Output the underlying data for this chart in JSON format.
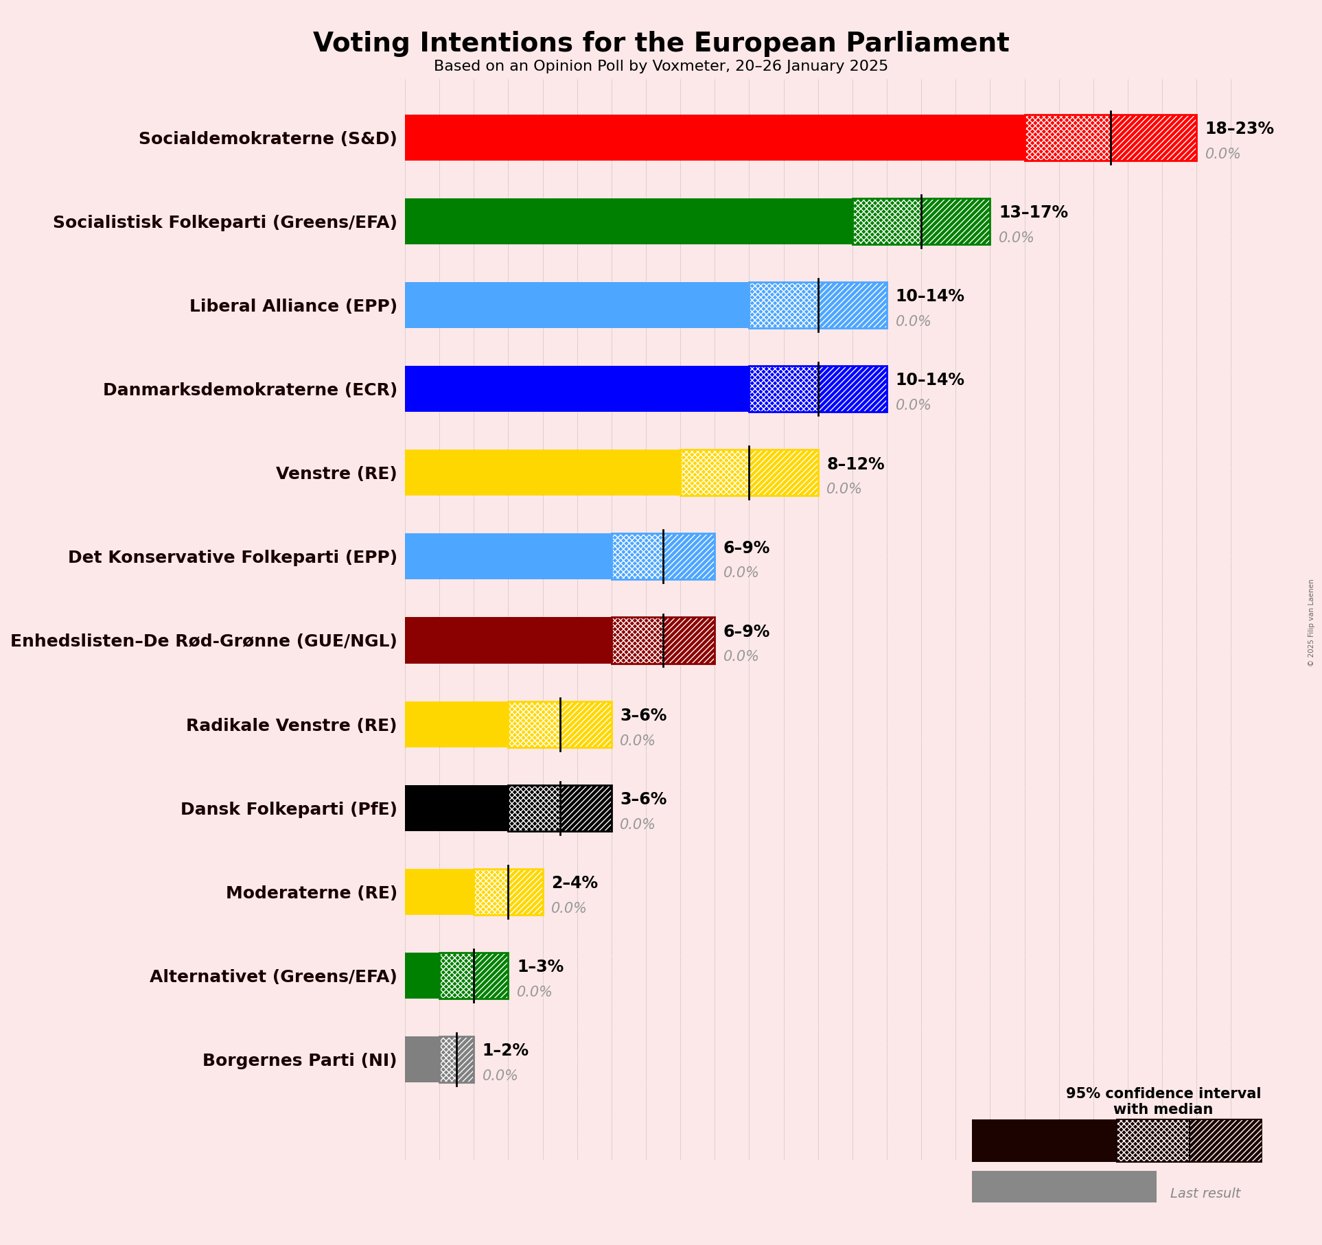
{
  "title": "Voting Intentions for the European Parliament",
  "subtitle": "Based on an Opinion Poll by Voxmeter, 20–26 January 2025",
  "copyright": "© 2025 Filip van Laenen",
  "background_color": "#fce8e8",
  "parties": [
    {
      "name": "Socialdemokraterne (S&D)",
      "low": 18,
      "high": 23,
      "median": 20.5,
      "last_result": 0.0,
      "color": "#FF0000",
      "label": "18–23%"
    },
    {
      "name": "Socialistisk Folkeparti (Greens/EFA)",
      "low": 13,
      "high": 17,
      "median": 15.0,
      "last_result": 0.0,
      "color": "#008000",
      "label": "13–17%"
    },
    {
      "name": "Liberal Alliance (EPP)",
      "low": 10,
      "high": 14,
      "median": 12.0,
      "last_result": 0.0,
      "color": "#4da6ff",
      "label": "10–14%"
    },
    {
      "name": "Danmarksdemokraterne (ECR)",
      "low": 10,
      "high": 14,
      "median": 12.0,
      "last_result": 0.0,
      "color": "#0000FF",
      "label": "10–14%"
    },
    {
      "name": "Venstre (RE)",
      "low": 8,
      "high": 12,
      "median": 10.0,
      "last_result": 0.0,
      "color": "#FFD700",
      "label": "8–12%"
    },
    {
      "name": "Det Konservative Folkeparti (EPP)",
      "low": 6,
      "high": 9,
      "median": 7.5,
      "last_result": 0.0,
      "color": "#4da6ff",
      "label": "6–9%"
    },
    {
      "name": "Enhedslisten–De Rød-Grønne (GUE/NGL)",
      "low": 6,
      "high": 9,
      "median": 7.5,
      "last_result": 0.0,
      "color": "#8B0000",
      "label": "6–9%"
    },
    {
      "name": "Radikale Venstre (RE)",
      "low": 3,
      "high": 6,
      "median": 4.5,
      "last_result": 0.0,
      "color": "#FFD700",
      "label": "3–6%"
    },
    {
      "name": "Dansk Folkeparti (PfE)",
      "low": 3,
      "high": 6,
      "median": 4.5,
      "last_result": 0.0,
      "color": "#000000",
      "label": "3–6%"
    },
    {
      "name": "Moderaterne (RE)",
      "low": 2,
      "high": 4,
      "median": 3.0,
      "last_result": 0.0,
      "color": "#FFD700",
      "label": "2–4%"
    },
    {
      "name": "Alternativet (Greens/EFA)",
      "low": 1,
      "high": 3,
      "median": 2.0,
      "last_result": 0.0,
      "color": "#008000",
      "label": "1–3%"
    },
    {
      "name": "Borgernes Parti (NI)",
      "low": 1,
      "high": 2,
      "median": 1.5,
      "last_result": 0.0,
      "color": "#808080",
      "label": "1–2%"
    }
  ],
  "xlim": [
    0,
    25
  ],
  "bar_height": 0.55,
  "title_fontsize": 28,
  "subtitle_fontsize": 16,
  "ytick_fontsize": 18,
  "annotation_fontsize": 17,
  "last_result_fontsize": 15,
  "legend_fontsize": 15
}
